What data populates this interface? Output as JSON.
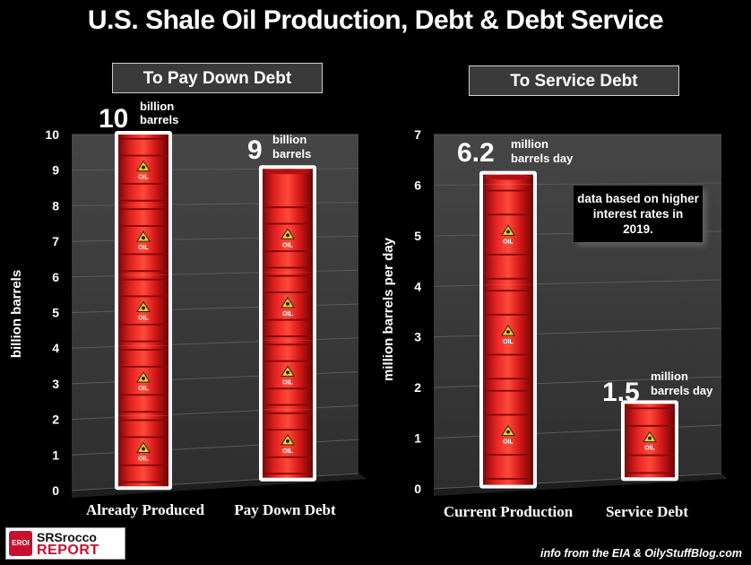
{
  "title": "U.S. Shale Oil Production, Debt & Debt Service",
  "left_panel": {
    "header": "To Pay Down Debt",
    "ylabel": "billion  barrels",
    "bar1_value_big": "10",
    "bar1_value_small": [
      "billion",
      "barrels"
    ],
    "bar2_value_big": "9",
    "bar2_value_small": [
      "billion",
      "barrels"
    ]
  },
  "right_panel": {
    "header": "To Service Debt",
    "ylabel": "million  barrels per day",
    "bar1_value_big": "6.2",
    "bar1_value_small": [
      "million",
      "barrels day"
    ],
    "bar2_value_big": "1.5",
    "bar2_value_small": [
      "million",
      "barrels day"
    ],
    "note": "data based on higher interest rates in 2019."
  },
  "barrel_label": "OIL",
  "footer": "info from the EIA & OilyStuffBlog.com",
  "logo": {
    "badge": "EROI",
    "line1": "SRSrocco",
    "line2": "REPORT"
  },
  "colors": {
    "background": "#000000",
    "plot": "#3c3c3c",
    "barrel": "#d81a1a",
    "text": "#ffffff"
  },
  "chart_data": [
    {
      "type": "bar",
      "title": "To Pay Down Debt",
      "xlabel": "",
      "ylabel": "billion  barrels",
      "categories": [
        "Already Produced",
        "Pay Down Debt"
      ],
      "values": [
        10,
        9
      ],
      "ylim": [
        0,
        10
      ],
      "yticks": [
        0,
        1,
        2,
        3,
        4,
        5,
        6,
        7,
        8,
        9,
        10
      ],
      "grid": true
    },
    {
      "type": "bar",
      "title": "To Service Debt",
      "xlabel": "",
      "ylabel": "million  barrels per day",
      "categories": [
        "Current Production",
        "Service Debt"
      ],
      "values": [
        6.2,
        1.5
      ],
      "ylim": [
        0,
        7
      ],
      "yticks": [
        0,
        1,
        2,
        3,
        4,
        5,
        6,
        7
      ],
      "grid": true
    }
  ]
}
